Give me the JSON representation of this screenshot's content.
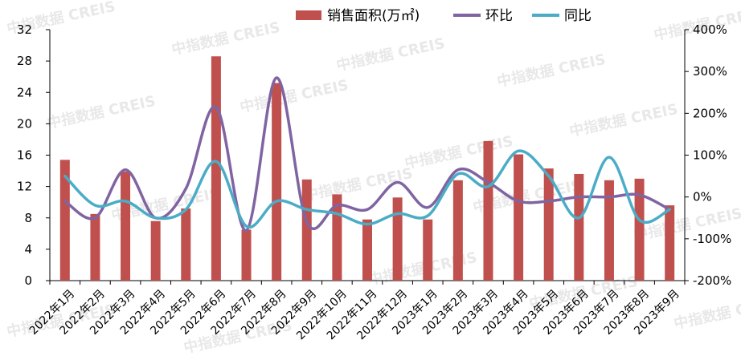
{
  "watermark": "中指数据 CREIS",
  "chart_data": {
    "type": "bar",
    "categories": [
      "2022年1月",
      "2022年2月",
      "2022年3月",
      "2022年4月",
      "2022年5月",
      "2022年6月",
      "2022年7月",
      "2022年8月",
      "2022年9月",
      "2022年10月",
      "2022年11月",
      "2022年12月",
      "2023年1月",
      "2023年2月",
      "2023年3月",
      "2023年4月",
      "2023年5月",
      "2023年6月",
      "2023年7月",
      "2023年8月",
      "2023年9月"
    ],
    "series": [
      {
        "name": "销售面积(万㎡)",
        "type": "bar",
        "axis": "left",
        "color": "#c0504d",
        "values": [
          15.4,
          8.5,
          13.9,
          7.6,
          9.2,
          28.6,
          6.5,
          25.2,
          12.9,
          11.0,
          7.8,
          10.6,
          7.8,
          12.8,
          17.8,
          16.1,
          14.3,
          13.6,
          12.8,
          13.0,
          9.6
        ]
      },
      {
        "name": "环比",
        "type": "line",
        "axis": "right",
        "color": "#8064a2",
        "values": [
          -10,
          -50,
          65,
          -50,
          20,
          215,
          -80,
          285,
          -60,
          -20,
          -30,
          35,
          -25,
          65,
          35,
          -10,
          -10,
          0,
          0,
          5,
          -30
        ]
      },
      {
        "name": "同比",
        "type": "line",
        "axis": "right",
        "color": "#4bacc6",
        "values": [
          50,
          -20,
          -10,
          -50,
          -30,
          85,
          -70,
          -10,
          -30,
          -40,
          -65,
          -40,
          -45,
          55,
          25,
          110,
          50,
          -50,
          95,
          -55,
          -30
        ]
      }
    ],
    "left_axis": {
      "min": 0,
      "max": 32,
      "ticks": [
        "0",
        "4",
        "8",
        "12",
        "16",
        "20",
        "24",
        "28",
        "32"
      ]
    },
    "right_axis": {
      "min": -200,
      "max": 400,
      "ticks": [
        "-200%",
        "-100%",
        "0%",
        "100%",
        "200%",
        "300%",
        "400%"
      ]
    },
    "legend_position": "top-center"
  }
}
